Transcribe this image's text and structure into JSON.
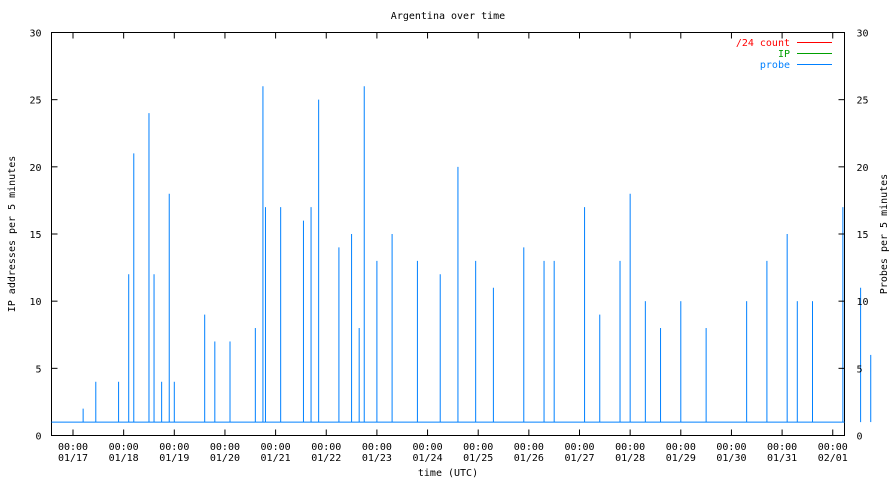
{
  "chart_data": {
    "type": "line",
    "title": "Argentina over time",
    "xlabel": "time (UTC)",
    "ylabel": "IP addresses per 5 minutes",
    "y2label": "Probes per 5 minutes",
    "ylim": [
      0,
      30
    ],
    "y_ticks": [
      "0",
      "5",
      "10",
      "15",
      "20",
      "25",
      "30"
    ],
    "x_ticks": [
      {
        "time": "00:00",
        "date": "01/17"
      },
      {
        "time": "00:00",
        "date": "01/18"
      },
      {
        "time": "00:00",
        "date": "01/19"
      },
      {
        "time": "00:00",
        "date": "01/20"
      },
      {
        "time": "00:00",
        "date": "01/21"
      },
      {
        "time": "00:00",
        "date": "01/22"
      },
      {
        "time": "00:00",
        "date": "01/23"
      },
      {
        "time": "00:00",
        "date": "01/24"
      },
      {
        "time": "00:00",
        "date": "01/25"
      },
      {
        "time": "00:00",
        "date": "01/26"
      },
      {
        "time": "00:00",
        "date": "01/27"
      },
      {
        "time": "00:00",
        "date": "01/28"
      },
      {
        "time": "00:00",
        "date": "01/29"
      },
      {
        "time": "00:00",
        "date": "01/30"
      },
      {
        "time": "00:00",
        "date": "01/31"
      },
      {
        "time": "00:00",
        "date": "02/01"
      }
    ],
    "grid": false,
    "legend_position": "top-right",
    "series": [
      {
        "name": "/24 count",
        "color": "#ff0000",
        "points": []
      },
      {
        "name": "IP",
        "color": "#00a000",
        "points": []
      },
      {
        "name": "probe",
        "color": "#0080ff",
        "baseline": 1,
        "points": [
          [
            0.2,
            2
          ],
          [
            0.45,
            4
          ],
          [
            0.9,
            4
          ],
          [
            1.1,
            12
          ],
          [
            1.2,
            21
          ],
          [
            1.5,
            24
          ],
          [
            1.6,
            12
          ],
          [
            1.75,
            4
          ],
          [
            1.9,
            18
          ],
          [
            2.0,
            4
          ],
          [
            2.6,
            9
          ],
          [
            2.8,
            7
          ],
          [
            3.1,
            7
          ],
          [
            3.6,
            8
          ],
          [
            3.75,
            26
          ],
          [
            3.8,
            17
          ],
          [
            4.1,
            17
          ],
          [
            4.55,
            16
          ],
          [
            4.7,
            17
          ],
          [
            4.85,
            25
          ],
          [
            5.25,
            14
          ],
          [
            5.5,
            15
          ],
          [
            5.65,
            8
          ],
          [
            5.75,
            26
          ],
          [
            6.0,
            13
          ],
          [
            6.3,
            15
          ],
          [
            6.8,
            13
          ],
          [
            7.25,
            12
          ],
          [
            7.6,
            20
          ],
          [
            7.95,
            13
          ],
          [
            8.3,
            11
          ],
          [
            8.9,
            14
          ],
          [
            9.3,
            13
          ],
          [
            9.5,
            13
          ],
          [
            10.1,
            17
          ],
          [
            10.4,
            9
          ],
          [
            10.8,
            13
          ],
          [
            11.0,
            18
          ],
          [
            11.3,
            10
          ],
          [
            11.6,
            8
          ],
          [
            12.0,
            10
          ],
          [
            12.5,
            8
          ],
          [
            13.3,
            10
          ],
          [
            13.7,
            13
          ],
          [
            14.1,
            15
          ],
          [
            14.3,
            10
          ],
          [
            14.6,
            10
          ],
          [
            15.2,
            17
          ],
          [
            15.55,
            11
          ],
          [
            15.75,
            6
          ]
        ]
      }
    ]
  }
}
